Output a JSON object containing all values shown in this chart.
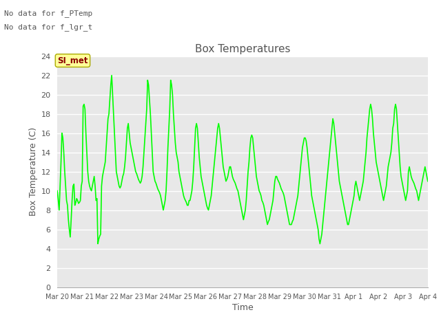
{
  "title": "Box Temperatures",
  "xlabel": "Time",
  "ylabel": "Box Temperature (C)",
  "ylim": [
    0,
    24
  ],
  "yticks": [
    0,
    2,
    4,
    6,
    8,
    10,
    12,
    14,
    16,
    18,
    20,
    22,
    24
  ],
  "line_color": "#00FF00",
  "line_width": 1.2,
  "bg_color": "#E8E8E8",
  "text_color": "#555555",
  "annotation_text1": "No data for f_PTemp",
  "annotation_text2": "No data for f_lgr_t",
  "si_met_text": "SI_met",
  "si_met_color": "#8B0000",
  "x_tick_labels": [
    "Mar 20",
    "Mar 21",
    "Mar 22",
    "Mar 23",
    "Mar 24",
    "Mar 25",
    "Mar 26",
    "Mar 27",
    "Mar 28",
    "Mar 29",
    "Mar 30",
    "Mar 31",
    "Apr 1",
    "Apr 2",
    "Apr 3",
    "Apr 4"
  ],
  "temp_data": [
    10.0,
    9.0,
    8.0,
    10.5,
    13.0,
    16.0,
    15.5,
    14.0,
    12.0,
    10.5,
    9.0,
    8.5,
    7.0,
    6.0,
    5.2,
    7.0,
    9.0,
    10.5,
    10.7,
    8.5,
    8.8,
    9.2,
    9.0,
    8.7,
    8.8,
    9.0,
    10.5,
    11.0,
    18.8,
    19.0,
    18.5,
    16.0,
    14.0,
    12.0,
    11.0,
    10.5,
    10.2,
    10.0,
    10.5,
    11.0,
    11.5,
    10.5,
    9.0,
    9.2,
    4.5,
    5.0,
    5.3,
    5.5,
    10.5,
    11.5,
    12.0,
    12.5,
    13.0,
    14.5,
    16.0,
    17.5,
    18.0,
    19.5,
    21.0,
    22.0,
    20.0,
    18.0,
    16.0,
    14.0,
    12.0,
    11.5,
    11.0,
    10.5,
    10.3,
    10.5,
    11.0,
    11.5,
    11.8,
    12.5,
    13.5,
    15.0,
    16.5,
    17.0,
    16.0,
    15.0,
    14.5,
    14.0,
    13.5,
    13.0,
    12.5,
    12.0,
    11.8,
    11.5,
    11.2,
    11.0,
    10.8,
    11.0,
    11.5,
    12.5,
    14.0,
    15.5,
    17.0,
    18.5,
    21.5,
    21.0,
    19.5,
    18.0,
    16.0,
    14.0,
    12.0,
    11.5,
    11.0,
    10.8,
    10.5,
    10.2,
    10.0,
    9.8,
    9.5,
    9.0,
    8.5,
    8.0,
    8.5,
    9.0,
    10.0,
    12.0,
    14.5,
    16.5,
    18.5,
    21.5,
    21.0,
    20.0,
    18.0,
    16.5,
    15.0,
    14.0,
    13.5,
    13.0,
    12.0,
    11.5,
    11.0,
    10.5,
    10.0,
    9.5,
    9.2,
    9.0,
    8.8,
    8.5,
    8.5,
    9.0,
    9.0,
    9.5,
    10.0,
    11.0,
    12.5,
    14.5,
    16.5,
    17.0,
    16.5,
    15.0,
    13.5,
    12.5,
    11.5,
    11.0,
    10.5,
    10.0,
    9.5,
    9.0,
    8.5,
    8.2,
    8.0,
    8.5,
    9.0,
    9.5,
    10.5,
    11.5,
    12.5,
    13.5,
    14.5,
    15.5,
    16.5,
    17.0,
    16.5,
    15.5,
    14.5,
    13.5,
    12.5,
    12.0,
    11.5,
    11.0,
    11.2,
    11.5,
    12.0,
    12.5,
    12.5,
    12.0,
    11.5,
    11.2,
    11.0,
    10.8,
    10.5,
    10.2,
    10.0,
    9.5,
    9.0,
    8.5,
    8.0,
    7.5,
    7.0,
    7.5,
    8.0,
    9.0,
    10.5,
    12.0,
    13.0,
    14.5,
    15.5,
    15.8,
    15.5,
    14.5,
    13.5,
    12.5,
    11.5,
    11.0,
    10.5,
    10.0,
    9.8,
    9.5,
    9.0,
    8.8,
    8.5,
    8.0,
    7.5,
    7.0,
    6.5,
    6.8,
    7.0,
    7.5,
    8.0,
    8.5,
    9.0,
    10.0,
    11.0,
    11.5,
    11.5,
    11.2,
    11.0,
    10.8,
    10.5,
    10.2,
    10.0,
    9.8,
    9.5,
    9.0,
    8.5,
    8.0,
    7.5,
    7.0,
    6.5,
    6.5,
    6.5,
    6.8,
    7.0,
    7.5,
    8.0,
    8.5,
    9.0,
    9.5,
    10.5,
    11.5,
    12.5,
    13.5,
    14.5,
    15.0,
    15.5,
    15.5,
    15.2,
    14.5,
    13.5,
    12.5,
    11.5,
    10.5,
    9.5,
    9.0,
    8.5,
    8.0,
    7.5,
    7.0,
    6.5,
    6.0,
    5.0,
    4.5,
    5.0,
    5.5,
    6.5,
    7.5,
    8.5,
    9.5,
    10.5,
    11.5,
    12.5,
    13.5,
    14.5,
    15.5,
    16.5,
    17.5,
    17.0,
    16.0,
    15.0,
    14.0,
    13.0,
    12.0,
    11.0,
    10.5,
    10.0,
    9.5,
    9.0,
    8.5,
    8.0,
    7.5,
    7.0,
    6.5,
    6.5,
    7.0,
    7.5,
    8.0,
    8.5,
    9.0,
    9.5,
    10.5,
    11.0,
    10.5,
    10.0,
    9.5,
    9.0,
    9.5,
    10.0,
    10.5,
    11.0,
    12.0,
    13.0,
    14.0,
    15.5,
    16.5,
    17.5,
    18.5,
    19.0,
    18.5,
    17.5,
    16.0,
    15.0,
    14.0,
    13.0,
    12.5,
    12.0,
    11.5,
    11.0,
    10.5,
    10.0,
    9.5,
    9.0,
    9.5,
    10.0,
    10.5,
    11.5,
    12.5,
    13.0,
    13.5,
    14.0,
    15.0,
    16.5,
    17.0,
    18.5,
    19.0,
    18.5,
    17.0,
    15.5,
    14.0,
    12.5,
    11.5,
    11.0,
    10.5,
    10.0,
    9.5,
    9.0,
    9.5,
    10.0,
    12.0,
    12.5,
    12.0,
    11.5,
    11.2,
    11.0,
    10.8,
    10.5,
    10.2,
    10.0,
    9.5,
    9.0,
    9.5,
    10.0,
    10.5,
    11.0,
    11.5,
    12.0,
    12.5,
    12.0,
    11.5,
    11.0
  ]
}
